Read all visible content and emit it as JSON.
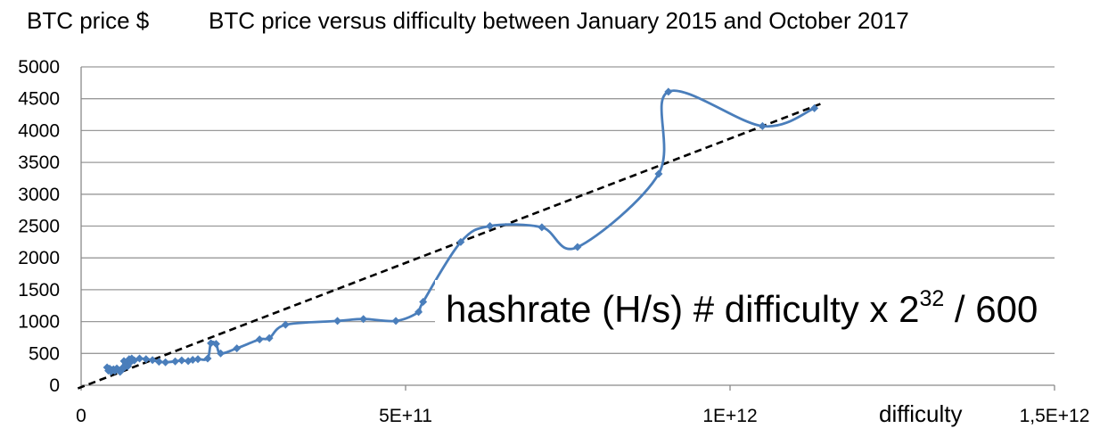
{
  "chart_data": {
    "type": "scatter",
    "title": "BTC price versus difficulty between January 2015 and October 2017",
    "ylabel": "BTC price $",
    "xlabel": "difficulty",
    "xlim": [
      0,
      1500000000000
    ],
    "ylim": [
      0,
      5000
    ],
    "y_ticks": [
      0,
      500,
      1000,
      1500,
      2000,
      2500,
      3000,
      3500,
      4000,
      4500,
      5000
    ],
    "x_ticks": [
      {
        "value": 0,
        "label": "0"
      },
      {
        "value": 500000000000,
        "label": "5E+11"
      },
      {
        "value": 1000000000000,
        "label": "1E+12"
      },
      {
        "value": 1500000000000,
        "label": "1,5E+12"
      }
    ],
    "grid": "horizontal",
    "annotation": {
      "prefix": "hashrate (H/s) # difficulty x 2",
      "superscript": "32",
      "suffix": " / 600"
    },
    "series": [
      {
        "marker": "diamond",
        "line": "smooth",
        "color": "#4a7ebb",
        "points": [
          [
            40000000000,
            280
          ],
          [
            42000000000,
            230
          ],
          [
            44000000000,
            260
          ],
          [
            46000000000,
            215
          ],
          [
            48000000000,
            240
          ],
          [
            50000000000,
            250
          ],
          [
            52000000000,
            225
          ],
          [
            55000000000,
            265
          ],
          [
            57000000000,
            245
          ],
          [
            60000000000,
            210
          ],
          [
            62000000000,
            235
          ],
          [
            64000000000,
            275
          ],
          [
            66000000000,
            380
          ],
          [
            68000000000,
            290
          ],
          [
            70000000000,
            330
          ],
          [
            72000000000,
            300
          ],
          [
            74000000000,
            410
          ],
          [
            76000000000,
            360
          ],
          [
            78000000000,
            420
          ],
          [
            82000000000,
            390
          ],
          [
            90000000000,
            420
          ],
          [
            100000000000,
            410
          ],
          [
            110000000000,
            395
          ],
          [
            120000000000,
            370
          ],
          [
            130000000000,
            360
          ],
          [
            145000000000,
            375
          ],
          [
            155000000000,
            390
          ],
          [
            165000000000,
            380
          ],
          [
            172000000000,
            400
          ],
          [
            180000000000,
            410
          ],
          [
            195000000000,
            420
          ],
          [
            200000000000,
            660
          ],
          [
            208000000000,
            650
          ],
          [
            215000000000,
            500
          ],
          [
            240000000000,
            580
          ],
          [
            275000000000,
            720
          ],
          [
            290000000000,
            740
          ],
          [
            315000000000,
            950
          ],
          [
            395000000000,
            1010
          ],
          [
            435000000000,
            1040
          ],
          [
            485000000000,
            1010
          ],
          [
            520000000000,
            1150
          ],
          [
            527000000000,
            1310
          ],
          [
            585000000000,
            2250
          ],
          [
            630000000000,
            2500
          ],
          [
            710000000000,
            2480
          ],
          [
            765000000000,
            2170
          ],
          [
            890000000000,
            3320
          ],
          [
            905000000000,
            4610
          ],
          [
            1050000000000,
            4070
          ],
          [
            1130000000000,
            4350
          ]
        ]
      }
    ],
    "trendline": {
      "style": "dashed",
      "color": "#000000",
      "points": [
        [
          -5000000000,
          -50
        ],
        [
          1145000000000,
          4440
        ]
      ]
    }
  }
}
